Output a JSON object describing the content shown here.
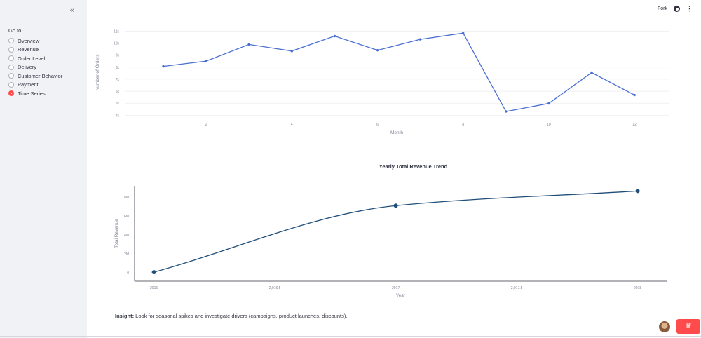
{
  "sidebar": {
    "collapse_icon": "double-chevron-left-icon",
    "title": "Go to",
    "items": [
      {
        "label": "Overview",
        "selected": false
      },
      {
        "label": "Revenue",
        "selected": false
      },
      {
        "label": "Order Level",
        "selected": false
      },
      {
        "label": "Delivery",
        "selected": false
      },
      {
        "label": "Customer Behavior",
        "selected": false
      },
      {
        "label": "Payment",
        "selected": false
      },
      {
        "label": "Time Series",
        "selected": true
      }
    ]
  },
  "topbar": {
    "fork_label": "Fork",
    "github_icon": "github-icon",
    "menu_icon": "kebab-menu-icon"
  },
  "colors": {
    "accent": "#ff4b4b",
    "line1": "#4a6fd1",
    "line2": "#1f4e79",
    "sidebar_bg": "#f0f2f6"
  },
  "chart_data": [
    {
      "type": "line",
      "title": "",
      "xlabel": "Month",
      "ylabel": "Number of Orders",
      "x": [
        1,
        2,
        3,
        4,
        5,
        6,
        7,
        8,
        9,
        10,
        11,
        12
      ],
      "values": [
        8070,
        8510,
        9890,
        9340,
        10590,
        9410,
        10320,
        10840,
        4310,
        4980,
        7550,
        5680
      ],
      "xlim": [
        0.1,
        12.8
      ],
      "ylim": [
        3900,
        11200
      ],
      "x_ticks": [
        2,
        4,
        6,
        8,
        10,
        12
      ],
      "x_tick_labels": [
        "2",
        "4",
        "6",
        "8",
        "10",
        "12"
      ],
      "y_ticks": [
        4000,
        5000,
        6000,
        7000,
        8000,
        9000,
        10000,
        11000
      ],
      "y_tick_labels": [
        "4k",
        "5k",
        "6k",
        "7k",
        "8k",
        "9k",
        "10k",
        "11k"
      ],
      "grid": true
    },
    {
      "type": "line",
      "title": "Yearly Total Revenue Trend",
      "xlabel": "Year",
      "ylabel": "Total Revenue",
      "x": [
        2016,
        2017,
        2018
      ],
      "values": [
        59000,
        7100000,
        8650000
      ],
      "xlim": [
        2015.92,
        2018.12
      ],
      "ylim": [
        -900000,
        9200000
      ],
      "x_ticks": [
        2016,
        2016.5,
        2017,
        2017.5,
        2018
      ],
      "x_tick_labels": [
        "2016",
        "2,016.5",
        "2017",
        "2,017.5",
        "2018"
      ],
      "y_ticks": [
        0,
        2000000,
        4000000,
        6000000,
        8000000
      ],
      "y_tick_labels": [
        "0",
        "2M",
        "4M",
        "6M",
        "8M"
      ],
      "grid": false
    }
  ],
  "insight": {
    "label": "Insight:",
    "text": " Look for seasonal spikes and investigate drivers (campaigns, product launches, discounts)."
  },
  "footer": {
    "avatar_icon": "user-avatar-icon",
    "crown_icon": "crown-icon"
  }
}
